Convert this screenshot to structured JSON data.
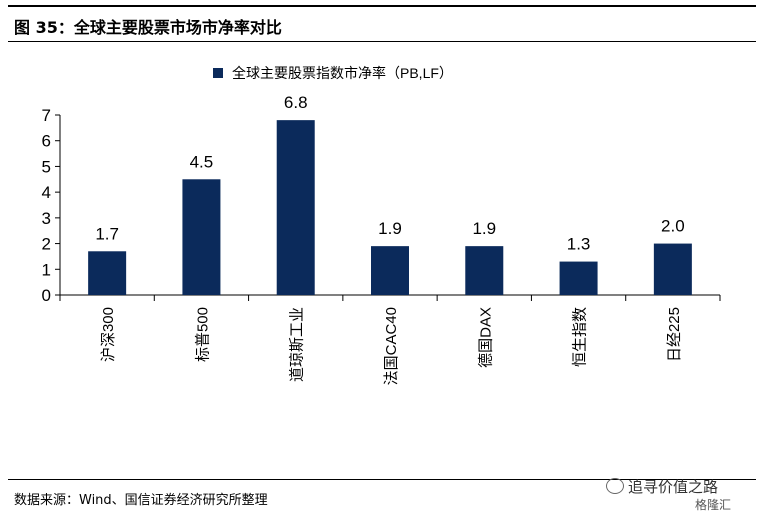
{
  "figure": {
    "title": "图 35：全球主要股票市场市净率对比",
    "source": "数据来源：Wind、国信证券经济研究所整理",
    "watermark": "追寻价值之路",
    "watermark2": "格隆汇"
  },
  "colors": {
    "bar": "#0b2a5b",
    "axis": "#000000"
  },
  "chart_data": {
    "type": "bar",
    "categories": [
      "沪深300",
      "标普500",
      "道琼斯工业",
      "法国CAC40",
      "德国DAX",
      "恒生指数",
      "日经225"
    ],
    "series": [
      {
        "name": "全球主要股票指数市净率（PB,LF）",
        "values": [
          1.7,
          4.5,
          6.8,
          1.9,
          1.9,
          1.3,
          2.0
        ]
      }
    ],
    "data_labels": [
      "1.7",
      "4.5",
      "6.8",
      "1.9",
      "1.9",
      "1.3",
      "2.0"
    ],
    "yticks": [
      "0",
      "1",
      "2",
      "3",
      "4",
      "5",
      "6",
      "7"
    ],
    "ylim": [
      0,
      7
    ],
    "legend_position": "top",
    "grid": false
  }
}
